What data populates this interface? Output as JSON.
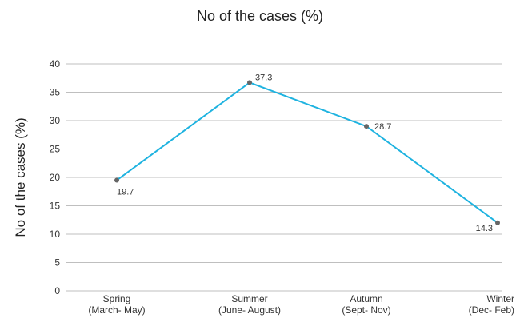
{
  "chart_data": {
    "type": "line",
    "title": "No of the cases (%)",
    "ylabel": "No of the cases (%)",
    "xlabel": "",
    "categories": [
      [
        "Spring",
        "(March- May)"
      ],
      [
        "Summer",
        "(June- August)"
      ],
      [
        "Autumn",
        "(Sept- Nov)"
      ],
      [
        "Winter",
        "(Dec- Feb)"
      ]
    ],
    "series": [
      {
        "values": [
          19.7,
          37.3,
          28.7,
          14.3
        ]
      }
    ],
    "data_label_values": [
      19.5,
      36.7,
      29.0,
      12.0
    ],
    "data_labels": [
      "19.7",
      "37.3",
      "28.7",
      "14.3"
    ],
    "ylim": [
      0,
      40
    ],
    "yticks": [
      0,
      5,
      10,
      15,
      20,
      25,
      30,
      35,
      40
    ],
    "grid": true,
    "legend": "none",
    "line_color": "#1fb3e0",
    "marker_color": "#666666",
    "grid_color": "#bfbfbf"
  }
}
